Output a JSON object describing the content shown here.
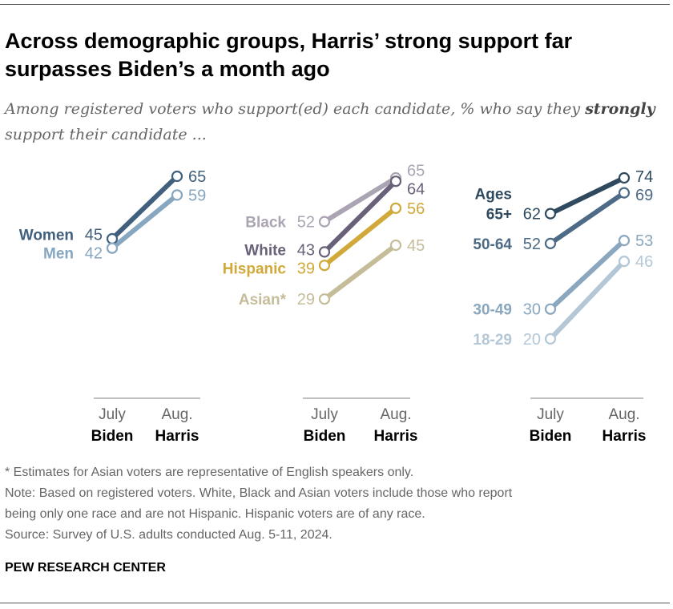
{
  "title": "Across demographic groups, Harris’ strong support far surpasses Biden’s a month ago",
  "subtitle_pre": "Among registered voters who support(ed) each candidate, % who say they ",
  "subtitle_bold": "strongly",
  "subtitle_post": " support their candidate ...",
  "chart_data": [
    {
      "type": "line",
      "categories": [
        "July",
        "Aug."
      ],
      "candidates": [
        "Biden",
        "Harris"
      ],
      "series": [
        {
          "name": "Women",
          "values": [
            45,
            65
          ],
          "color": "#41607e"
        },
        {
          "name": "Men",
          "values": [
            42,
            59
          ],
          "color": "#87a6bf"
        }
      ]
    },
    {
      "type": "line",
      "categories": [
        "July",
        "Aug."
      ],
      "candidates": [
        "Biden",
        "Harris"
      ],
      "series": [
        {
          "name": "Black",
          "values": [
            52,
            65
          ],
          "color": "#aba5b3"
        },
        {
          "name": "White",
          "values": [
            43,
            64
          ],
          "color": "#686178"
        },
        {
          "name": "Hispanic",
          "values": [
            39,
            56
          ],
          "color": "#d1a93a"
        },
        {
          "name": "Asian*",
          "values": [
            29,
            45
          ],
          "color": "#c5bd9a"
        }
      ]
    },
    {
      "type": "line",
      "group_label": "Ages",
      "categories": [
        "July",
        "Aug."
      ],
      "candidates": [
        "Biden",
        "Harris"
      ],
      "series": [
        {
          "name": "65+",
          "values": [
            62,
            74
          ],
          "color": "#2f4a5e"
        },
        {
          "name": "50-64",
          "values": [
            52,
            69
          ],
          "color": "#4d6a86"
        },
        {
          "name": "30-49",
          "values": [
            30,
            53
          ],
          "color": "#8aa7bf"
        },
        {
          "name": "18-29",
          "values": [
            20,
            46
          ],
          "color": "#b3c7d6"
        }
      ]
    }
  ],
  "notes": [
    "* Estimates for Asian voters are representative of English speakers only.",
    "Note: Based on registered voters. White, Black and Asian voters include those who report",
    "being only one race and are not Hispanic. Hispanic voters are of any race.",
    "Source: Survey of U.S. adults conducted Aug. 5-11, 2024."
  ],
  "brand": "PEW RESEARCH CENTER"
}
